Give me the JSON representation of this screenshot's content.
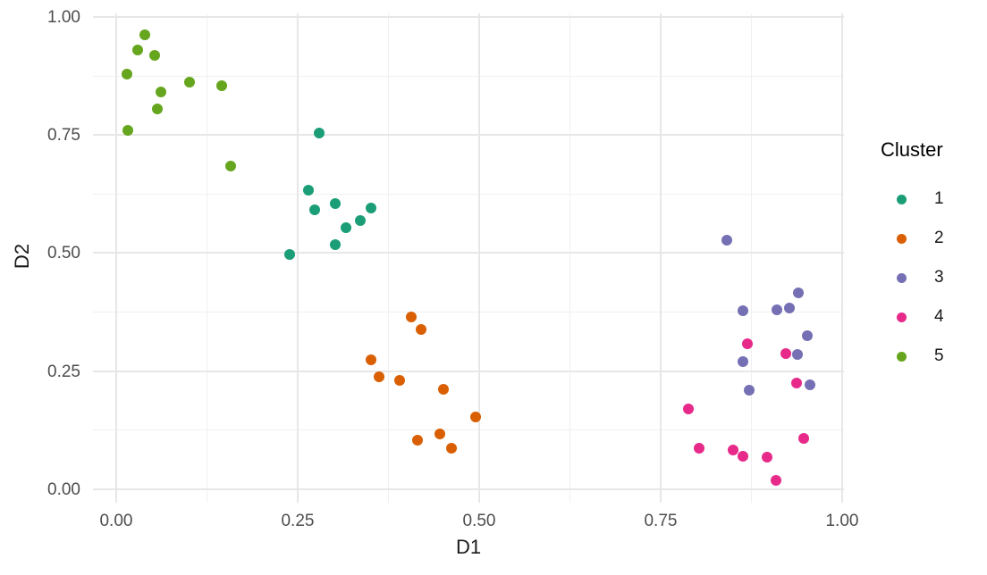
{
  "chart_data": {
    "type": "scatter",
    "xlabel": "D1",
    "ylabel": "D2",
    "xlim": [
      -0.032,
      1.0025
    ],
    "ylim": [
      -0.0284,
      1.0076
    ],
    "x_tick_values": [
      0,
      0.25,
      0.5,
      0.75,
      1
    ],
    "x_tick_labels": [
      "0.00",
      "0.25",
      "0.50",
      "0.75",
      "1.00"
    ],
    "y_tick_values": [
      0,
      0.25,
      0.5,
      0.75,
      1
    ],
    "y_tick_labels": [
      "0.00",
      "0.25",
      "0.50",
      "0.75",
      "1.00"
    ],
    "x_minor_gridlines": [
      0.125,
      0.375,
      0.625,
      0.875
    ],
    "y_minor_gridlines": [
      0.125,
      0.375,
      0.625,
      0.875
    ],
    "grid": "on",
    "legend": {
      "title": "Cluster",
      "position": "right"
    },
    "series": [
      {
        "name": "1",
        "color": "#1B9E77",
        "points": [
          [
            0.28,
            0.754
          ],
          [
            0.265,
            0.633
          ],
          [
            0.273,
            0.592
          ],
          [
            0.302,
            0.605
          ],
          [
            0.316,
            0.554
          ],
          [
            0.336,
            0.569
          ],
          [
            0.351,
            0.595
          ],
          [
            0.302,
            0.518
          ],
          [
            0.239,
            0.497
          ]
        ]
      },
      {
        "name": "2",
        "color": "#D95F02",
        "points": [
          [
            0.406,
            0.365
          ],
          [
            0.42,
            0.338
          ],
          [
            0.351,
            0.274
          ],
          [
            0.362,
            0.238
          ],
          [
            0.39,
            0.231
          ],
          [
            0.451,
            0.212
          ],
          [
            0.495,
            0.153
          ],
          [
            0.446,
            0.117
          ],
          [
            0.415,
            0.104
          ],
          [
            0.462,
            0.087
          ]
        ]
      },
      {
        "name": "3",
        "color": "#7570B3",
        "points": [
          [
            0.841,
            0.527
          ],
          [
            0.94,
            0.416
          ],
          [
            0.927,
            0.384
          ],
          [
            0.91,
            0.38
          ],
          [
            0.863,
            0.378
          ],
          [
            0.952,
            0.325
          ],
          [
            0.938,
            0.285
          ],
          [
            0.863,
            0.27
          ],
          [
            0.956,
            0.221
          ],
          [
            0.872,
            0.21
          ]
        ]
      },
      {
        "name": "4",
        "color": "#E7298A",
        "points": [
          [
            0.869,
            0.308
          ],
          [
            0.922,
            0.287
          ],
          [
            0.937,
            0.225
          ],
          [
            0.788,
            0.17
          ],
          [
            0.947,
            0.108
          ],
          [
            0.803,
            0.087
          ],
          [
            0.85,
            0.083
          ],
          [
            0.863,
            0.07
          ],
          [
            0.897,
            0.068
          ],
          [
            0.909,
            0.019
          ]
        ]
      },
      {
        "name": "5",
        "color": "#66A61E",
        "points": [
          [
            0.039,
            0.962
          ],
          [
            0.03,
            0.93
          ],
          [
            0.053,
            0.919
          ],
          [
            0.015,
            0.879
          ],
          [
            0.101,
            0.862
          ],
          [
            0.145,
            0.854
          ],
          [
            0.062,
            0.841
          ],
          [
            0.057,
            0.805
          ],
          [
            0.016,
            0.76
          ],
          [
            0.158,
            0.684
          ]
        ]
      }
    ]
  }
}
